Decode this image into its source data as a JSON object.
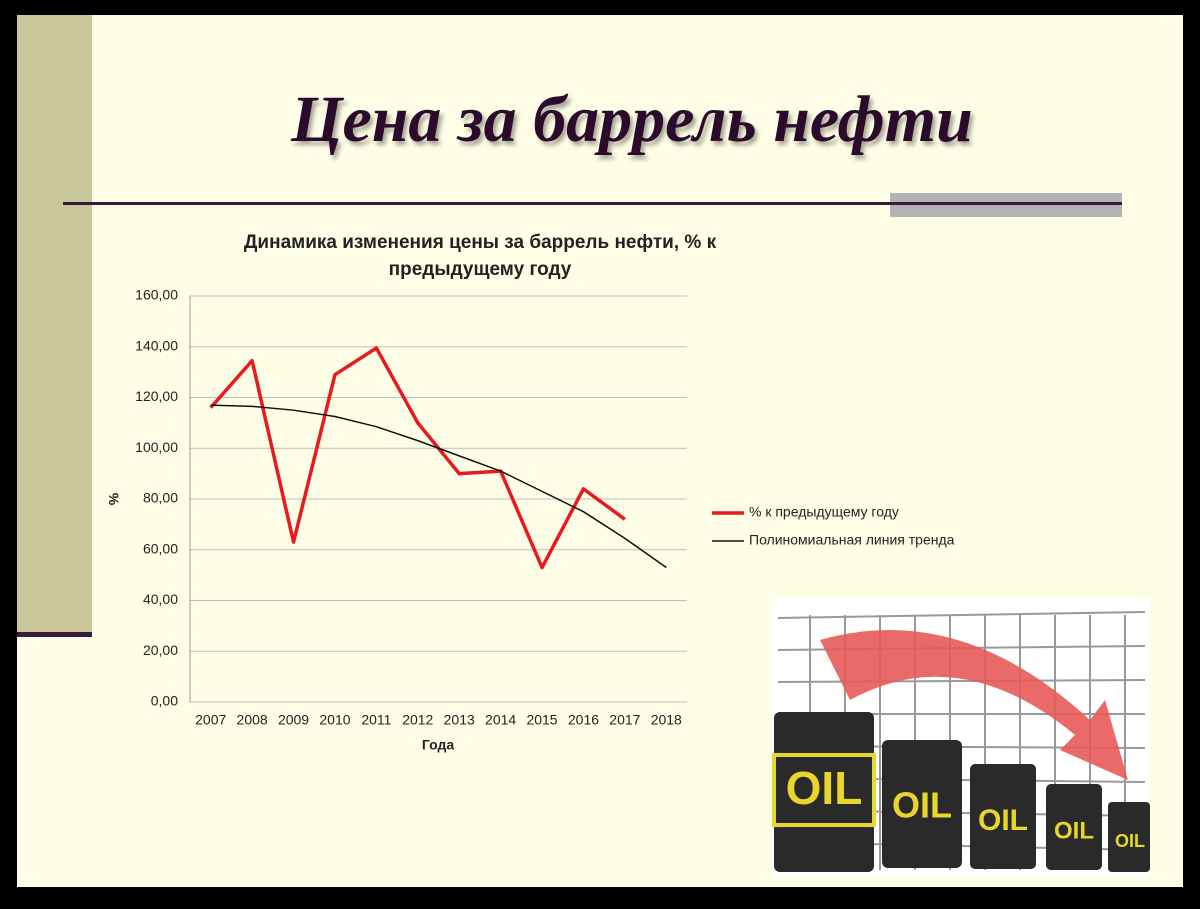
{
  "slide_title": "Цена за баррель нефти",
  "chart_data": {
    "type": "line",
    "title": "Динамика изменения цены за баррель нефти, % к предыдущему году",
    "x_label": "Года",
    "y_label": "%",
    "categories": [
      "2007",
      "2008",
      "2009",
      "2010",
      "2011",
      "2012",
      "2013",
      "2014",
      "2015",
      "2016",
      "2017",
      "2018"
    ],
    "series": [
      {
        "name": "% к предыдущему году",
        "color": "#e8191f",
        "values": [
          116,
          134.5,
          63,
          129,
          139.5,
          110,
          90,
          91,
          53,
          84,
          72,
          null
        ]
      },
      {
        "name": "Полиномиальная линия тренда",
        "color": "#111111",
        "values": [
          117,
          116.5,
          115,
          112.5,
          108.5,
          103,
          97,
          91,
          83,
          75,
          64.5,
          53
        ]
      }
    ],
    "ylim": [
      0,
      160
    ],
    "yticks": [
      {
        "value": 0,
        "label": "0,00"
      },
      {
        "value": 20,
        "label": "20,00"
      },
      {
        "value": 40,
        "label": "40,00"
      },
      {
        "value": 60,
        "label": "60,00"
      },
      {
        "value": 80,
        "label": "80,00"
      },
      {
        "value": 100,
        "label": "100,00"
      },
      {
        "value": 120,
        "label": "120,00"
      },
      {
        "value": 140,
        "label": "140,00"
      },
      {
        "value": 160,
        "label": "160,00"
      }
    ],
    "grid": true,
    "legend": "right"
  }
}
